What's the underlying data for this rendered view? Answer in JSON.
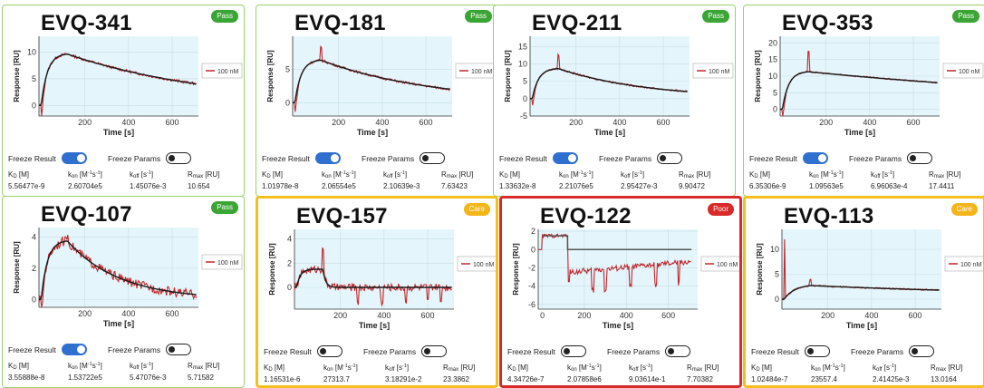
{
  "colors": {
    "pass": "#3aa534",
    "care": "#f2b51a",
    "poor": "#d92a2a",
    "fit_line": "#1a1a1a",
    "data_line": "#c0272d",
    "plot_bg": "#e4f6fb",
    "toggle_on": "#2f6fd0"
  },
  "labels": {
    "freeze_result": "Freeze Result",
    "freeze_params": "Freeze Params",
    "legend": "100 nM",
    "xlabel": "Time [s]",
    "ylabel": "Response [RU]"
  },
  "cards": [
    {
      "id": "EVQ-341",
      "status": "Pass",
      "params": {
        "kd": "5.56477e-9",
        "kon": "2.60704e5",
        "koff": "1.45076e-3",
        "rmax": "10.654"
      },
      "freeze_result": true,
      "freeze_params": false,
      "chart_data": {
        "type": "line",
        "xlim": [
          -10,
          720
        ],
        "ylim": [
          -2,
          13
        ],
        "yticks": [
          0,
          5,
          10
        ],
        "xticks": [
          200,
          400,
          600
        ],
        "shape": "standard",
        "rmax": 9.8,
        "end": 4.0,
        "spike": 0,
        "noise": 0.25
      }
    },
    {
      "id": "EVQ-181",
      "status": "Pass",
      "params": {
        "kd": "1.01978e-8",
        "kon": "2.06554e5",
        "koff": "2.10639e-3",
        "rmax": "7.63423"
      },
      "freeze_result": true,
      "freeze_params": false,
      "chart_data": {
        "type": "line",
        "xlim": [
          -10,
          720
        ],
        "ylim": [
          -2,
          10
        ],
        "yticks": [
          0,
          5
        ],
        "xticks": [
          200,
          400,
          600
        ],
        "shape": "standard",
        "rmax": 6.5,
        "end": 2.0,
        "spike": 3.0,
        "noise": 0.18
      }
    },
    {
      "id": "EVQ-211",
      "status": "Pass",
      "params": {
        "kd": "1.33632e-8",
        "kon": "2.21076e5",
        "koff": "2.95427e-3",
        "rmax": "9.90472"
      },
      "freeze_result": true,
      "freeze_params": false,
      "chart_data": {
        "type": "line",
        "xlim": [
          -10,
          720
        ],
        "ylim": [
          -5,
          18
        ],
        "yticks": [
          -5,
          0,
          5,
          10,
          15
        ],
        "xticks": [
          200,
          400,
          600
        ],
        "shape": "standard",
        "rmax": 8.8,
        "end": 2.0,
        "spike": 6.0,
        "noise": 0.25
      }
    },
    {
      "id": "EVQ-353",
      "status": "Pass",
      "params": {
        "kd": "6.35306e-9",
        "kon": "1.09563e5",
        "koff": "6.96063e-4",
        "rmax": "17.4411"
      },
      "freeze_result": true,
      "freeze_params": false,
      "chart_data": {
        "type": "line",
        "xlim": [
          -10,
          720
        ],
        "ylim": [
          -2,
          22
        ],
        "yticks": [
          0,
          5,
          10,
          15,
          20
        ],
        "xticks": [
          200,
          400,
          600
        ],
        "shape": "standard",
        "rmax": 11.5,
        "end": 8.0,
        "spike": 9.0,
        "noise": 0.2
      }
    },
    {
      "id": "EVQ-107",
      "status": "Pass",
      "params": {
        "kd": "3.55888e-8",
        "kon": "1.53722e5",
        "koff": "5.47076e-3",
        "rmax": "5.71582"
      },
      "freeze_result": true,
      "freeze_params": false,
      "chart_data": {
        "type": "line",
        "xlim": [
          -10,
          720
        ],
        "ylim": [
          -0.5,
          4.6
        ],
        "yticks": [
          0,
          2,
          4
        ],
        "xticks": [
          200,
          400,
          600
        ],
        "shape": "standard",
        "rmax": 3.8,
        "end": 0.3,
        "spike": 0.6,
        "noise": 0.3
      }
    },
    {
      "id": "EVQ-157",
      "status": "Care",
      "params": {
        "kd": "1.16531e-6",
        "kon": "27313.7",
        "koff": "3.18291e-2",
        "rmax": "23.3862"
      },
      "freeze_result": false,
      "freeze_params": false,
      "chart_data": {
        "type": "line",
        "xlim": [
          -10,
          720
        ],
        "ylim": [
          -1.8,
          4.8
        ],
        "yticks": [
          0,
          2,
          4
        ],
        "xticks": [
          200,
          400,
          600
        ],
        "shape": "fast",
        "rmax": 1.5,
        "end": 0,
        "spike": 3.0,
        "noise": 0.3
      }
    },
    {
      "id": "EVQ-122",
      "status": "Poor",
      "params": {
        "kd": "4.34726e-7",
        "kon": "2.07858e6",
        "koff": "9.03614e-1",
        "rmax": "7.70382"
      },
      "freeze_result": false,
      "freeze_params": false,
      "chart_data": {
        "type": "line",
        "xlim": [
          -20,
          740
        ],
        "ylim": [
          -6.5,
          2.2
        ],
        "yticks": [
          -6,
          -4,
          -2,
          0,
          2
        ],
        "xticks": [
          0,
          200,
          400,
          600
        ],
        "shape": "square",
        "rmax": 1.5,
        "end": -1.5,
        "spike": 0,
        "noise": 0.3
      }
    },
    {
      "id": "EVQ-113",
      "status": "Care",
      "params": {
        "kd": "1.02484e-7",
        "kon": "23557.4",
        "koff": "2.41425e-3",
        "rmax": "13.0164"
      },
      "freeze_result": false,
      "freeze_params": false,
      "chart_data": {
        "type": "line",
        "xlim": [
          -10,
          720
        ],
        "ylim": [
          -2,
          14
        ],
        "yticks": [
          0,
          5,
          10
        ],
        "xticks": [
          200,
          400,
          600
        ],
        "shape": "slow",
        "rmax": 3.0,
        "end": 1.6,
        "spike": 12.0,
        "noise": 0.15
      }
    }
  ]
}
